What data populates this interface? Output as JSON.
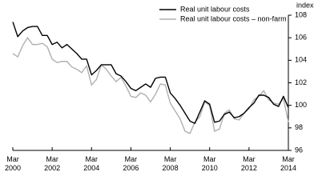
{
  "chart_data": {
    "type": "line",
    "y_label": "index",
    "categories": [
      "Mar 2000",
      null,
      null,
      null,
      null,
      null,
      null,
      null,
      "Mar 2002",
      null,
      null,
      null,
      null,
      null,
      null,
      null,
      "Mar 2004",
      null,
      null,
      null,
      null,
      null,
      null,
      null,
      "Mar 2006",
      null,
      null,
      null,
      null,
      null,
      null,
      null,
      "Mar 2008",
      null,
      null,
      null,
      null,
      null,
      null,
      null,
      "Mar 2010",
      null,
      null,
      null,
      null,
      null,
      null,
      null,
      "Mar 2012",
      null,
      null,
      null,
      null,
      null,
      null,
      null,
      "Mar 2014"
    ],
    "series": [
      {
        "name": "Real unit labour costs",
        "color": "#000000",
        "values": [
          107.4,
          106.1,
          106.6,
          106.9,
          107.0,
          107.0,
          106.2,
          106.2,
          105.4,
          105.6,
          105.1,
          105.4,
          105.0,
          104.6,
          104.1,
          104.1,
          102.7,
          103.1,
          103.6,
          103.6,
          103.6,
          102.8,
          102.6,
          102.1,
          101.5,
          101.3,
          101.6,
          101.9,
          101.6,
          102.4,
          102.5,
          102.5,
          101.1,
          100.6,
          100.0,
          99.3,
          98.6,
          98.4,
          99.4,
          100.4,
          100.1,
          98.5,
          98.6,
          99.2,
          99.4,
          98.9,
          99.0,
          99.3,
          99.8,
          100.2,
          100.9,
          100.9,
          100.7,
          100.1,
          99.9,
          100.8,
          99.8
        ]
      },
      {
        "name": "Real unit labour costs – non-farm",
        "color": "#b0b0b0",
        "values": [
          104.6,
          104.3,
          105.3,
          106.0,
          105.4,
          105.4,
          105.5,
          105.2,
          104.1,
          103.8,
          103.9,
          103.9,
          103.4,
          103.2,
          102.9,
          103.5,
          101.8,
          102.3,
          103.6,
          103.2,
          102.6,
          102.1,
          102.5,
          101.7,
          100.8,
          100.7,
          101.1,
          100.9,
          100.3,
          101.0,
          101.9,
          101.8,
          100.2,
          99.5,
          98.8,
          97.7,
          97.5,
          98.5,
          99.0,
          100.3,
          100.0,
          97.7,
          97.9,
          99.3,
          99.6,
          98.8,
          98.7,
          99.3,
          99.7,
          100.5,
          100.8,
          101.3,
          100.5,
          100.2,
          100.1,
          100.6,
          98.5
        ]
      }
    ],
    "ylim": [
      96,
      108
    ],
    "yticks": [
      96,
      98,
      100,
      102,
      104,
      106,
      108
    ]
  }
}
